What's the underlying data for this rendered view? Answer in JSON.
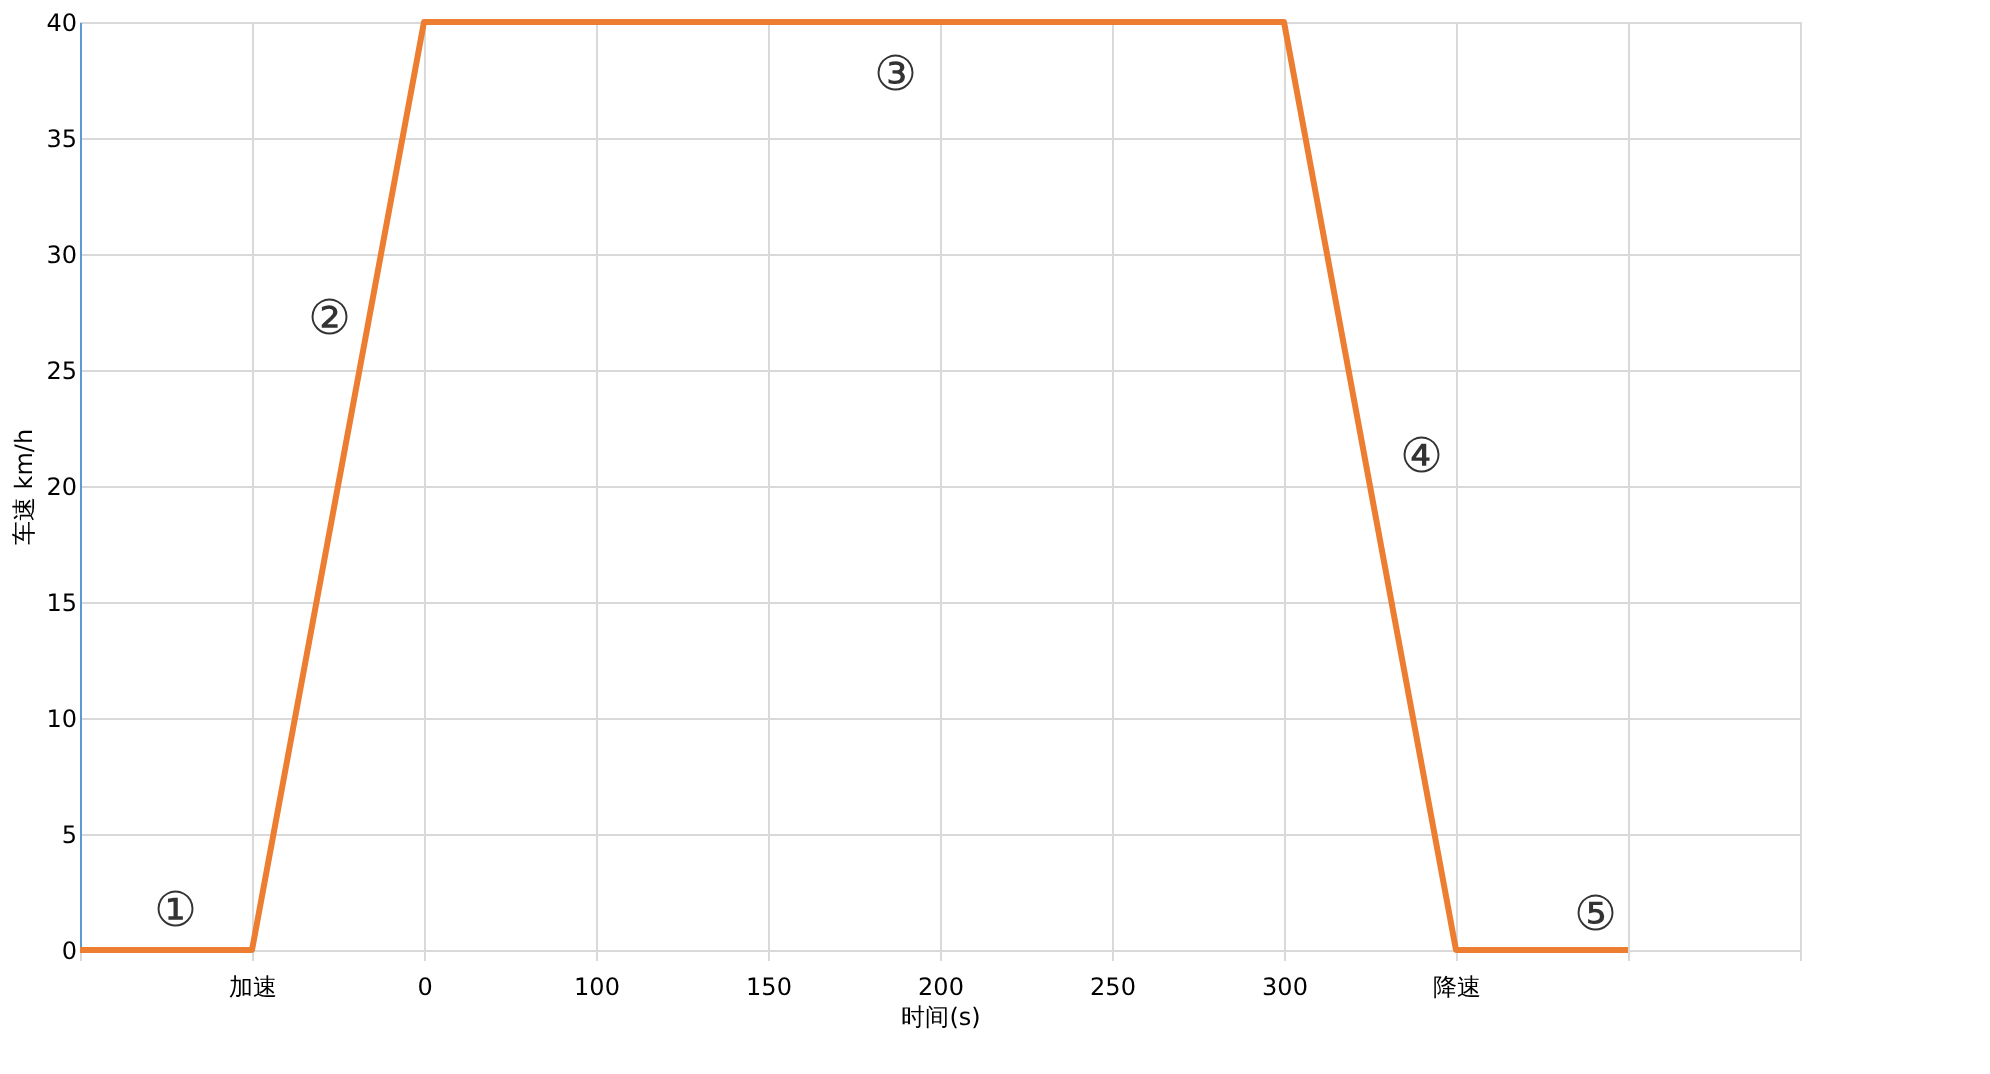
{
  "chart_data": {
    "type": "line",
    "xlabel": "时间(s)",
    "ylabel": "车速 km/h",
    "categories": [
      null,
      "加速",
      "0",
      "100",
      "150",
      "200",
      "250",
      "300",
      "降速",
      null,
      null
    ],
    "series": [
      {
        "color": "#ed7d31",
        "values": [
          0,
          0,
          40,
          40,
          40,
          40,
          40,
          40,
          0,
          0,
          null
        ]
      }
    ],
    "ylim": [
      0,
      40
    ],
    "yticks": [
      0,
      5,
      10,
      15,
      20,
      25,
      30,
      35,
      40
    ],
    "grid": true,
    "marker": "none",
    "line_style": "solid",
    "annotations": [
      "①",
      "②",
      "③",
      "④",
      "⑤"
    ]
  }
}
